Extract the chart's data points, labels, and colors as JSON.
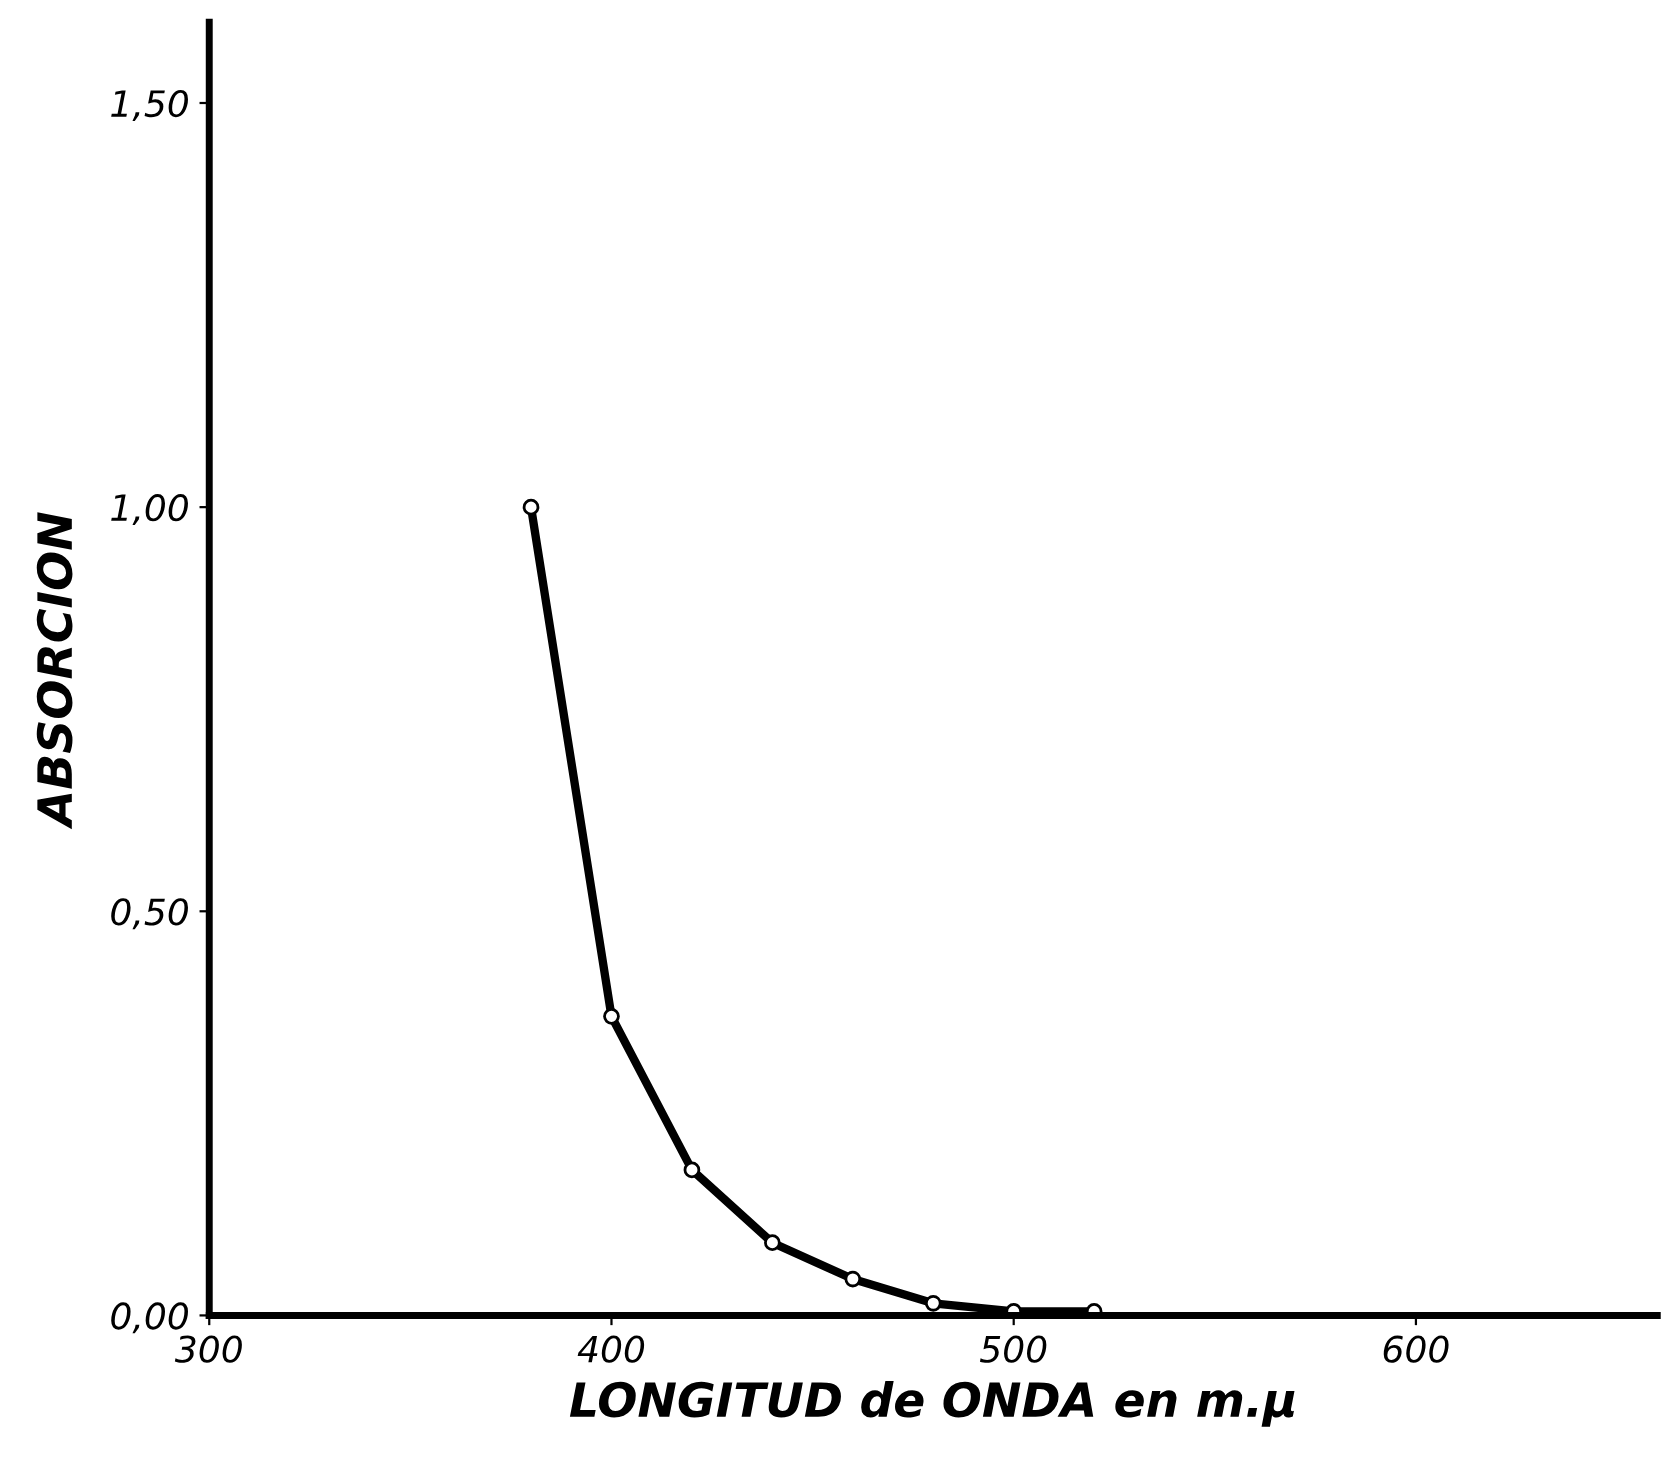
{
  "chart_data": {
    "type": "line",
    "xlabel": "LONGITUD de ONDA en m.μ",
    "ylabel": "ABSORCION",
    "x": [
      380,
      400,
      420,
      440,
      460,
      480,
      500,
      520
    ],
    "series": [
      {
        "color": "#000000",
        "values": [
          1.0,
          0.37,
          0.18,
          0.09,
          0.045,
          0.015,
          0.005,
          0.005
        ]
      }
    ],
    "xlim": [
      300,
      660
    ],
    "xticks": [
      300,
      400,
      500,
      600
    ],
    "ylim": [
      0,
      1.6
    ],
    "yticks": [
      {
        "value": 0,
        "label": "0,00"
      },
      {
        "value": 0.5,
        "label": "0,50"
      },
      {
        "value": 1.0,
        "label": "1,00"
      },
      {
        "value": 1.5,
        "label": "1,50"
      }
    ],
    "grid": false,
    "marker": "circle",
    "line_style": "solid"
  }
}
